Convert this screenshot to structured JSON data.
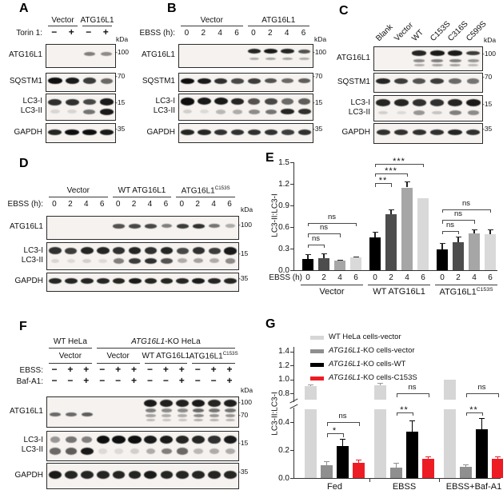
{
  "panels": {
    "A": {
      "label": "A",
      "groups": [
        {
          "text": "Vector"
        },
        {
          "text": "ATG16L1"
        }
      ],
      "header_rows": [
        {
          "name": "Torin 1:",
          "symbols": [
            "−",
            "+",
            "−",
            "+"
          ]
        }
      ],
      "kda": "kDa",
      "blots": [
        {
          "label": "ATG16L1",
          "marker": "100",
          "bands": [
            {
              "y": 0.42,
              "h": 0.2,
              "i": [
                0,
                0,
                0.5,
                0.45
              ]
            }
          ]
        },
        {
          "label": "SQSTM1",
          "marker": "70",
          "bands": [
            {
              "y": 0.42,
              "h": 0.34,
              "i": [
                1,
                0.95,
                0.8,
                0.6
              ]
            }
          ]
        },
        {
          "label": "LC3-I",
          "label2": "LC3-II",
          "marker": "15",
          "bands": [
            {
              "y": 0.3,
              "h": 0.24,
              "i": [
                0.85,
                0.85,
                0.75,
                0.95
              ]
            },
            {
              "y": 0.68,
              "h": 0.22,
              "i": [
                0.12,
                0.12,
                0.55,
                0.95
              ]
            }
          ]
        },
        {
          "label": "GAPDH",
          "marker": "35",
          "bands": [
            {
              "y": 0.45,
              "h": 0.3,
              "i": [
                0.9,
                1,
                1,
                0.95
              ]
            }
          ]
        }
      ]
    },
    "B": {
      "label": "B",
      "groups": [
        {
          "text": "Vector"
        },
        {
          "text": "ATG16L1"
        }
      ],
      "header_rows": [
        {
          "name": "EBSS (h):",
          "symbols": [
            "0",
            "2",
            "4",
            "6",
            "0",
            "2",
            "4",
            "6"
          ]
        }
      ],
      "kda": "kDa",
      "blots": [
        {
          "label": "ATG16L1",
          "marker": "100",
          "bands": [
            {
              "y": 0.3,
              "h": 0.2,
              "i": [
                0,
                0,
                0,
                0,
                0.9,
                0.95,
                0.9,
                0.7
              ]
            },
            {
              "y": 0.64,
              "h": 0.13,
              "i": [
                0,
                0,
                0,
                0,
                0.3,
                0.35,
                0.35,
                0.3
              ]
            }
          ]
        },
        {
          "label": "SQSTM1",
          "marker": "70",
          "bands": [
            {
              "y": 0.42,
              "h": 0.3,
              "i": [
                1,
                0.95,
                0.85,
                0.75,
                0.8,
                0.7,
                0.6,
                0.65
              ]
            }
          ]
        },
        {
          "label": "LC3-I",
          "label2": "LC3-II",
          "marker": "15",
          "bands": [
            {
              "y": 0.28,
              "h": 0.26,
              "i": [
                1,
                0.95,
                0.95,
                0.9,
                0.7,
                0.75,
                0.6,
                0.65
              ]
            },
            {
              "y": 0.68,
              "h": 0.22,
              "i": [
                0.15,
                0.1,
                0.25,
                0.3,
                0.45,
                0.55,
                0.9,
                0.85
              ]
            }
          ]
        },
        {
          "label": "GAPDH",
          "marker": "35",
          "bands": [
            {
              "y": 0.45,
              "h": 0.28,
              "i": [
                0.9,
                0.9,
                0.85,
                0.85,
                0.85,
                0.85,
                0.8,
                0.85
              ]
            }
          ]
        }
      ]
    },
    "C": {
      "label": "C",
      "lane_labels": [
        "Blank",
        "Vector",
        "WT",
        "C153S",
        "C316S",
        "C599S"
      ],
      "kda": "kDa",
      "blots": [
        {
          "label": "ATG16L1",
          "marker": "100",
          "bands": [
            {
              "y": 0.26,
              "h": 0.2,
              "i": [
                0,
                0,
                0.9,
                0.95,
                0.95,
                0.8
              ]
            },
            {
              "y": 0.58,
              "h": 0.14,
              "i": [
                0,
                0,
                0.45,
                0.5,
                0.5,
                0.4
              ]
            },
            {
              "y": 0.78,
              "h": 0.12,
              "i": [
                0,
                0,
                0.3,
                0.35,
                0.35,
                0.25
              ]
            }
          ]
        },
        {
          "label": "SQSTM1",
          "marker": "70",
          "bands": [
            {
              "y": 0.42,
              "h": 0.3,
              "i": [
                0.9,
                0.8,
                0.7,
                0.8,
                0.6,
                0.55
              ]
            }
          ]
        },
        {
          "label": "LC3-I",
          "label2": "LC3-II",
          "marker": "15",
          "bands": [
            {
              "y": 0.28,
              "h": 0.26,
              "i": [
                0.9,
                0.9,
                0.85,
                0.85,
                0.9,
                0.95
              ]
            },
            {
              "y": 0.68,
              "h": 0.2,
              "i": [
                0.15,
                0.1,
                0.4,
                0.2,
                0.5,
                0.45
              ]
            }
          ]
        },
        {
          "label": "GAPDH",
          "marker": "35",
          "bands": [
            {
              "y": 0.45,
              "h": 0.28,
              "i": [
                0.85,
                0.85,
                0.85,
                0.85,
                0.9,
                0.85
              ]
            }
          ]
        }
      ]
    },
    "D": {
      "label": "D",
      "groups": [
        {
          "text": "Vector"
        },
        {
          "text": "WT ATG16L1"
        },
        {
          "text": "ATG16L1",
          "sup": "C153S"
        }
      ],
      "header_rows": [
        {
          "name": "EBSS (h):",
          "symbols": [
            "0",
            "2",
            "4",
            "6",
            "0",
            "2",
            "4",
            "6",
            "0",
            "2",
            "4",
            "6"
          ]
        }
      ],
      "kda": "kDa",
      "blots": [
        {
          "label": "ATG16L1",
          "marker": "100",
          "bands": [
            {
              "y": 0.42,
              "h": 0.2,
              "i": [
                0,
                0,
                0,
                0,
                0.7,
                0.75,
                0.75,
                0.5,
                0.8,
                0.85,
                0.55,
                0.3
              ]
            }
          ]
        },
        {
          "label": "LC3-I",
          "label2": "LC3-II",
          "marker": "15",
          "bands": [
            {
              "y": 0.3,
              "h": 0.26,
              "i": [
                0.85,
                0.8,
                0.9,
                0.9,
                0.85,
                0.9,
                0.85,
                0.9,
                0.75,
                0.85,
                0.8,
                0.95
              ]
            },
            {
              "y": 0.68,
              "h": 0.22,
              "i": [
                0.12,
                0.1,
                0.15,
                0.1,
                0.5,
                0.8,
                0.85,
                0.7,
                0.3,
                0.35,
                0.3,
                0.45
              ]
            }
          ]
        },
        {
          "label": "GAPDH",
          "marker": "35",
          "bands": [
            {
              "y": 0.45,
              "h": 0.3,
              "i": [
                0.9,
                0.9,
                0.9,
                0.9,
                0.9,
                0.95,
                0.9,
                0.9,
                0.9,
                0.95,
                0.9,
                0.9
              ]
            }
          ]
        }
      ]
    },
    "E": {
      "label": "E"
    },
    "F": {
      "label": "F",
      "groups_top": [
        {
          "text": "WT HeLa"
        },
        {
          "italic": "ATG16L1",
          "text": "-KO HeLa"
        }
      ],
      "groups_sub": [
        {
          "text": "Vector"
        },
        {
          "text": "Vector"
        },
        {
          "text": "WT ATG16L1"
        },
        {
          "text": "ATG16L1",
          "sup": "C153S"
        }
      ],
      "header_rows": [
        {
          "name": "EBSS:",
          "symbols": [
            "−",
            "+",
            "+",
            "−",
            "+",
            "+",
            "−",
            "+",
            "+",
            "−",
            "+",
            "+"
          ]
        },
        {
          "name": "Baf-A1:",
          "symbols": [
            "−",
            "−",
            "+",
            "−",
            "−",
            "+",
            "−",
            "−",
            "+",
            "−",
            "−",
            "+"
          ]
        }
      ],
      "kda": "kDa",
      "blots": [
        {
          "label": "ATG16L1",
          "marker": "100",
          "marker2": "70",
          "bands": [
            {
              "y": 0.2,
              "h": 0.24,
              "i": [
                0,
                0,
                0,
                0,
                0,
                0,
                0.95,
                0.92,
                0.92,
                0.95,
                0.9,
                0.93
              ]
            },
            {
              "y": 0.45,
              "h": 0.14,
              "i": [
                0,
                0,
                0,
                0,
                0,
                0,
                0.5,
                0.45,
                0.45,
                0.6,
                0.55,
                0.55
              ]
            },
            {
              "y": 0.62,
              "h": 0.12,
              "i": [
                0,
                0,
                0,
                0,
                0,
                0,
                0.35,
                0.3,
                0.3,
                0.45,
                0.4,
                0.4
              ]
            },
            {
              "y": 0.78,
              "h": 0.1,
              "i": [
                0,
                0,
                0,
                0,
                0,
                0,
                0.25,
                0.2,
                0.2,
                0.3,
                0.28,
                0.28
              ]
            },
            {
              "y": 0.58,
              "h": 0.16,
              "i": [
                0.6,
                0.6,
                0.65,
                0,
                0,
                0,
                0,
                0,
                0,
                0,
                0,
                0
              ]
            }
          ]
        },
        {
          "label": "LC3-I",
          "label2": "LC3-II",
          "marker": "15",
          "bands": [
            {
              "y": 0.28,
              "h": 0.26,
              "i": [
                0.4,
                0.55,
                0.5,
                1,
                1,
                1,
                0.95,
                0.95,
                0.9,
                0.9,
                0.85,
                0.95
              ]
            },
            {
              "y": 0.68,
              "h": 0.24,
              "i": [
                0.6,
                0.65,
                0.95,
                0.1,
                0.1,
                0.15,
                0.3,
                0.5,
                0.6,
                0.25,
                0.3,
                0.3
              ]
            }
          ]
        },
        {
          "label": "GAPDH",
          "marker": "35",
          "bands": [
            {
              "y": 0.45,
              "h": 0.3,
              "i": [
                0.95,
                0.9,
                0.9,
                0.9,
                0.9,
                0.9,
                0.95,
                0.9,
                0.9,
                0.9,
                0.9,
                0.9
              ]
            }
          ]
        }
      ]
    },
    "G": {
      "label": "G"
    }
  },
  "chart_data": [
    {
      "panel": "E",
      "type": "bar",
      "ylabel": "LC3-II:LC3-I",
      "ylim": [
        0,
        1.5
      ],
      "yticks": [
        0,
        0.3,
        0.6,
        0.9,
        1.2,
        1.5
      ],
      "x_prefix": "EBSS (h)",
      "bar_colors": [
        "#000000",
        "#4d4d4d",
        "#a6a6a6",
        "#d9d9d9"
      ],
      "grid": false,
      "groups": [
        {
          "label": {
            "text": "Vector"
          },
          "x": [
            "0",
            "2",
            "4",
            "6"
          ],
          "values": [
            0.16,
            0.17,
            0.13,
            0.18
          ],
          "errors": [
            0.06,
            0.06,
            0.015,
            0.01
          ],
          "brackets": [
            {
              "from": 0,
              "to": 1,
              "label": "ns",
              "y": 0.36
            },
            {
              "from": 0,
              "to": 2,
              "label": "ns",
              "y": 0.51
            },
            {
              "from": 0,
              "to": 3,
              "label": "ns",
              "y": 0.66
            }
          ]
        },
        {
          "label": {
            "text": "WT ATG16L1"
          },
          "x": [
            "0",
            "2",
            "4",
            "6"
          ],
          "values": [
            0.46,
            0.78,
            1.15,
            1.0
          ],
          "errors": [
            0.07,
            0.07,
            0.08,
            0
          ],
          "brackets": [
            {
              "from": 0,
              "to": 1,
              "label": "**",
              "y": 1.21
            },
            {
              "from": 0,
              "to": 2,
              "label": "***",
              "y": 1.35
            },
            {
              "from": 0,
              "to": 3,
              "label": "***",
              "y": 1.48
            }
          ]
        },
        {
          "label": {
            "text": "ATG16L1",
            "sup": "C153S"
          },
          "x": [
            "0",
            "2",
            "4",
            "6"
          ],
          "values": [
            0.29,
            0.39,
            0.51,
            0.5
          ],
          "errors": [
            0.09,
            0.08,
            0.06,
            0.07
          ],
          "brackets": [
            {
              "from": 0,
              "to": 1,
              "label": "ns",
              "y": 0.55
            },
            {
              "from": 0,
              "to": 2,
              "label": "ns",
              "y": 0.7
            },
            {
              "from": 0,
              "to": 3,
              "label": "ns",
              "y": 0.85
            }
          ]
        }
      ]
    },
    {
      "panel": "G",
      "type": "bar",
      "ylabel": "LC3-II:LC3-I",
      "yticks_lower": [
        0,
        0.2,
        0.4
      ],
      "yticks_upper": [
        0.8,
        1.0,
        1.2,
        1.4
      ],
      "axis_break": [
        0.5,
        0.75
      ],
      "legend_position": "top-left",
      "categories": [
        "Fed",
        "EBSS",
        "EBSS+Baf-A1"
      ],
      "series": [
        {
          "name": {
            "text": "WT HeLa cells-vector"
          },
          "color": "#d6d6d6",
          "values": [
            0.9,
            0.92,
            1.0
          ],
          "errors": [
            0.03,
            0.03,
            0
          ]
        },
        {
          "name": {
            "italic": "ATG16L1",
            "text": "-KO cells-vector"
          },
          "color": "#8f8f8f",
          "values": [
            0.09,
            0.075,
            0.08
          ],
          "errors": [
            0.03,
            0.035,
            0.02
          ]
        },
        {
          "name": {
            "italic": "ATG16L1",
            "text": "-KO cells-WT"
          },
          "color": "#000000",
          "values": [
            0.23,
            0.33,
            0.35
          ],
          "errors": [
            0.05,
            0.08,
            0.08
          ]
        },
        {
          "name": {
            "italic": "ATG16L1",
            "text": "-KO cells-C153S"
          },
          "color": "#ed1c24",
          "values": [
            0.11,
            0.135,
            0.135
          ],
          "errors": [
            0.02,
            0.02,
            0.02
          ]
        }
      ],
      "brackets": [
        [
          {
            "from": 1,
            "to": 2,
            "label": "*",
            "y": 0.32
          },
          {
            "from": 1,
            "to": 3,
            "label": "ns",
            "y": 0.4
          }
        ],
        [
          {
            "from": 1,
            "to": 2,
            "label": "**",
            "y": 0.47
          },
          {
            "from": 1,
            "to": 3,
            "label": "ns",
            "y": 0.8
          }
        ],
        [
          {
            "from": 1,
            "to": 2,
            "label": "**",
            "y": 0.47
          },
          {
            "from": 1,
            "to": 3,
            "label": "ns",
            "y": 0.8
          }
        ]
      ]
    }
  ]
}
